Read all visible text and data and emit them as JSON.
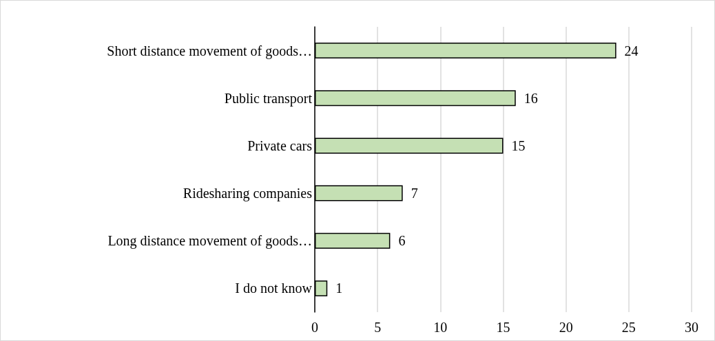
{
  "chart_data": {
    "type": "bar",
    "orientation": "horizontal",
    "categories": [
      "Short distance movement of goods…",
      "Public transport",
      "Private cars",
      "Ridesharing companies",
      "Long distance movement of goods…",
      "I do not know"
    ],
    "values": [
      24,
      16,
      15,
      7,
      6,
      1
    ],
    "color": "#c5e0b4",
    "xlim": [
      0,
      30
    ],
    "xticks": [
      0,
      5,
      10,
      15,
      20,
      25,
      30
    ],
    "grid": "x",
    "data_labels": true
  }
}
